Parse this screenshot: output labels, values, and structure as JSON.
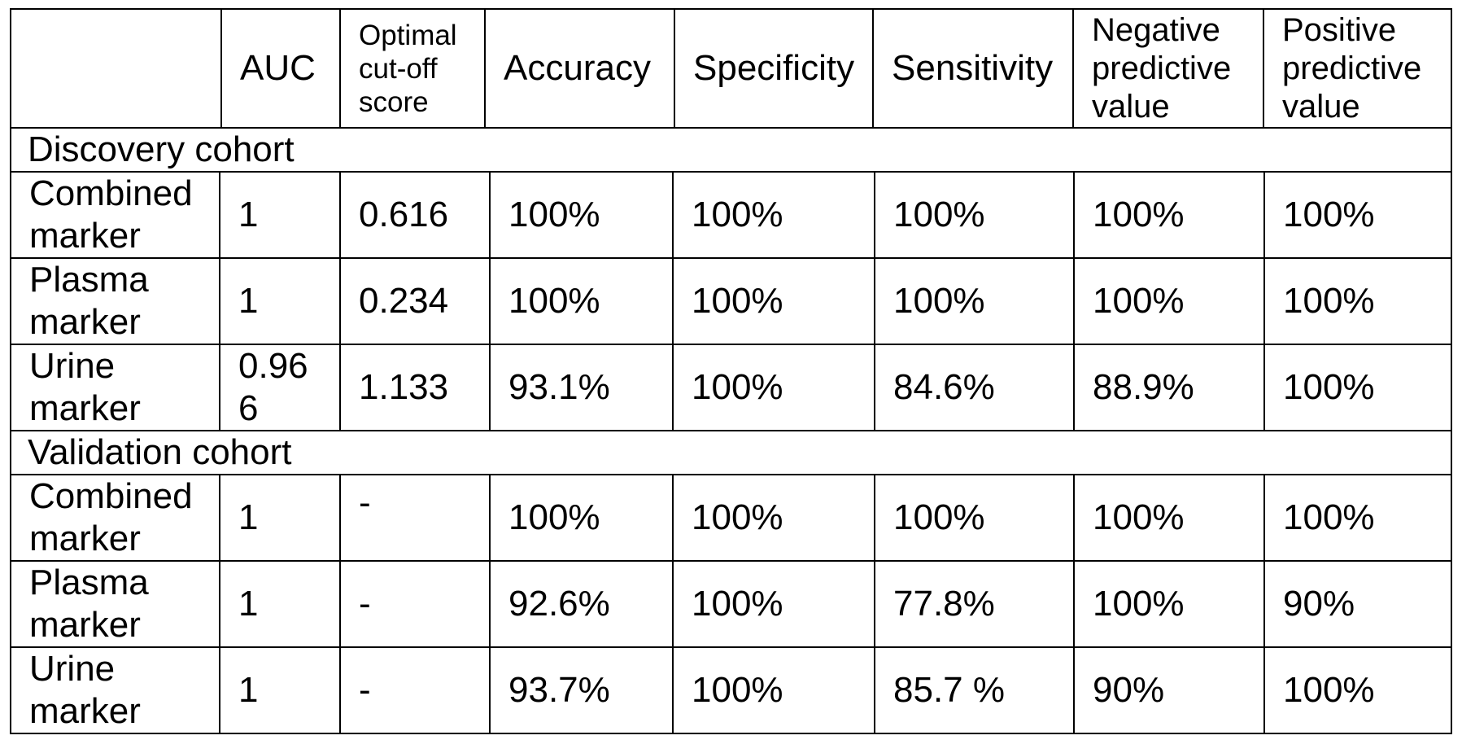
{
  "table": {
    "headers": [
      "",
      "AUC",
      "Optimal\ncut-off\nscore",
      "Accuracy",
      "Specificity",
      "Sensitivity",
      "Negative\npredictive\nvalue",
      "Positive\npredictive\nvalue"
    ],
    "sections": [
      {
        "title": "Discovery cohort",
        "rows": [
          [
            "Combined\nmarker",
            "1",
            "0.616",
            "100%",
            "100%",
            "100%",
            "100%",
            "100%"
          ],
          [
            "Plasma\nmarker",
            "1",
            "0.234",
            "100%",
            "100%",
            "100%",
            "100%",
            "100%"
          ],
          [
            "Urine\nmarker",
            "0.96\n6",
            "1.133",
            "93.1%",
            "100%",
            "84.6%",
            "88.9%",
            "100%"
          ]
        ]
      },
      {
        "title": "Validation cohort",
        "rows": [
          [
            "Combined\nmarker",
            "1",
            "-",
            "100%",
            "100%",
            "100%",
            "100%",
            "100%"
          ],
          [
            "Plasma\nmarker",
            "1",
            "-",
            "92.6%",
            "100%",
            "77.8%",
            "100%",
            "90%"
          ],
          [
            "Urine\nmarker",
            "1",
            "-",
            "93.7%",
            "100%",
            "85.7 %",
            "90%",
            "100%"
          ]
        ]
      }
    ]
  }
}
